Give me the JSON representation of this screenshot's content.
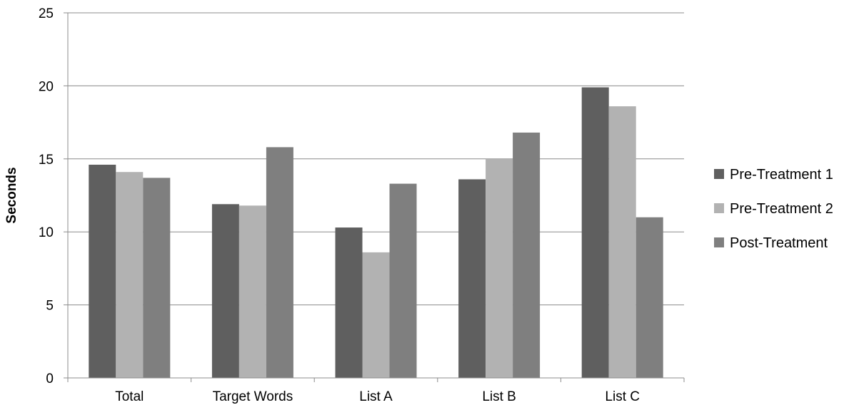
{
  "chart_data": {
    "type": "bar",
    "title": "",
    "xlabel": "",
    "ylabel": "Seconds",
    "ylim": [
      0,
      25
    ],
    "yticks": [
      0,
      5,
      10,
      15,
      20,
      25
    ],
    "grid": "horizontal",
    "legend_position": "right",
    "categories": [
      "Total",
      "Target Words",
      "List A",
      "List B",
      "List C"
    ],
    "series": [
      {
        "name": "Pre-Treatment 1",
        "color": "#5f5f5f",
        "values": [
          14.6,
          11.9,
          10.3,
          13.6,
          19.9
        ]
      },
      {
        "name": "Pre-Treatment 2",
        "color": "#b2b2b2",
        "values": [
          14.1,
          11.8,
          8.6,
          15.0,
          18.6
        ]
      },
      {
        "name": "Post-Treatment",
        "color": "#7f7f7f",
        "values": [
          13.7,
          15.8,
          13.3,
          16.8,
          11.0
        ]
      }
    ]
  }
}
